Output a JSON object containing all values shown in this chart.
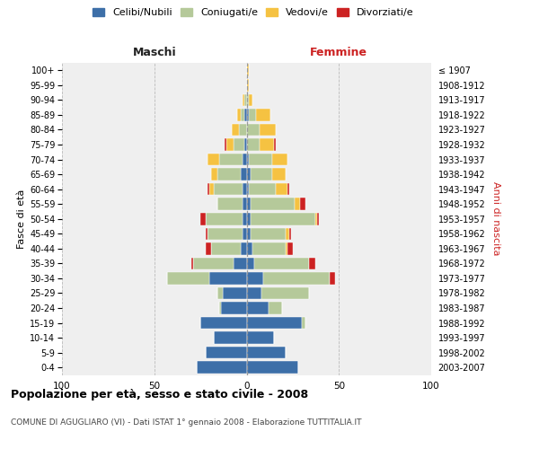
{
  "age_groups": [
    "0-4",
    "5-9",
    "10-14",
    "15-19",
    "20-24",
    "25-29",
    "30-34",
    "35-39",
    "40-44",
    "45-49",
    "50-54",
    "55-59",
    "60-64",
    "65-69",
    "70-74",
    "75-79",
    "80-84",
    "85-89",
    "90-94",
    "95-99",
    "100+"
  ],
  "birth_years": [
    "2003-2007",
    "1998-2002",
    "1993-1997",
    "1988-1992",
    "1983-1987",
    "1978-1982",
    "1973-1977",
    "1968-1972",
    "1963-1967",
    "1958-1962",
    "1953-1957",
    "1948-1952",
    "1943-1947",
    "1938-1942",
    "1933-1937",
    "1928-1932",
    "1923-1927",
    "1918-1922",
    "1913-1917",
    "1908-1912",
    "≤ 1907"
  ],
  "colors": {
    "celibe": "#3d6fa8",
    "coniugato": "#b5c99a",
    "vedovo": "#f5c242",
    "divorziato": "#cc2222"
  },
  "males": {
    "celibe": [
      27,
      22,
      18,
      25,
      14,
      13,
      20,
      7,
      3,
      2,
      2,
      2,
      2,
      3,
      2,
      1,
      0,
      1,
      0,
      0,
      0
    ],
    "coniugato": [
      0,
      0,
      0,
      0,
      1,
      3,
      23,
      22,
      16,
      19,
      20,
      14,
      16,
      13,
      13,
      6,
      4,
      2,
      1,
      0,
      0
    ],
    "vedovo": [
      0,
      0,
      0,
      0,
      0,
      0,
      0,
      0,
      0,
      0,
      0,
      0,
      2,
      3,
      6,
      4,
      4,
      2,
      1,
      0,
      0
    ],
    "divorziato": [
      0,
      0,
      0,
      0,
      0,
      0,
      0,
      1,
      3,
      1,
      3,
      0,
      1,
      0,
      0,
      1,
      0,
      0,
      0,
      0,
      0
    ]
  },
  "females": {
    "celibe": [
      28,
      21,
      15,
      30,
      12,
      8,
      9,
      4,
      3,
      2,
      2,
      2,
      1,
      2,
      1,
      0,
      0,
      1,
      0,
      0,
      0
    ],
    "coniugato": [
      0,
      0,
      0,
      2,
      7,
      26,
      36,
      30,
      18,
      19,
      35,
      24,
      15,
      12,
      13,
      7,
      7,
      4,
      1,
      0,
      0
    ],
    "vedovo": [
      0,
      0,
      0,
      0,
      0,
      0,
      0,
      0,
      1,
      2,
      1,
      3,
      6,
      7,
      8,
      8,
      9,
      8,
      2,
      1,
      1
    ],
    "divorziato": [
      0,
      0,
      0,
      0,
      0,
      0,
      3,
      3,
      3,
      1,
      1,
      3,
      1,
      0,
      0,
      1,
      0,
      0,
      0,
      0,
      0
    ]
  },
  "xlim": 100,
  "title": "Popolazione per età, sesso e stato civile - 2008",
  "subtitle": "COMUNE DI AGUGLIARO (VI) - Dati ISTAT 1° gennaio 2008 - Elaborazione TUTTITALIA.IT",
  "ylabel_left": "Fasce di età",
  "ylabel_right": "Anni di nascita",
  "xlabel_maschi": "Maschi",
  "xlabel_femmine": "Femmine",
  "legend_labels": [
    "Celibi/Nubili",
    "Coniugati/e",
    "Vedovi/e",
    "Divorziati/e"
  ],
  "bg_color": "#ffffff",
  "plot_bg": "#efefef"
}
